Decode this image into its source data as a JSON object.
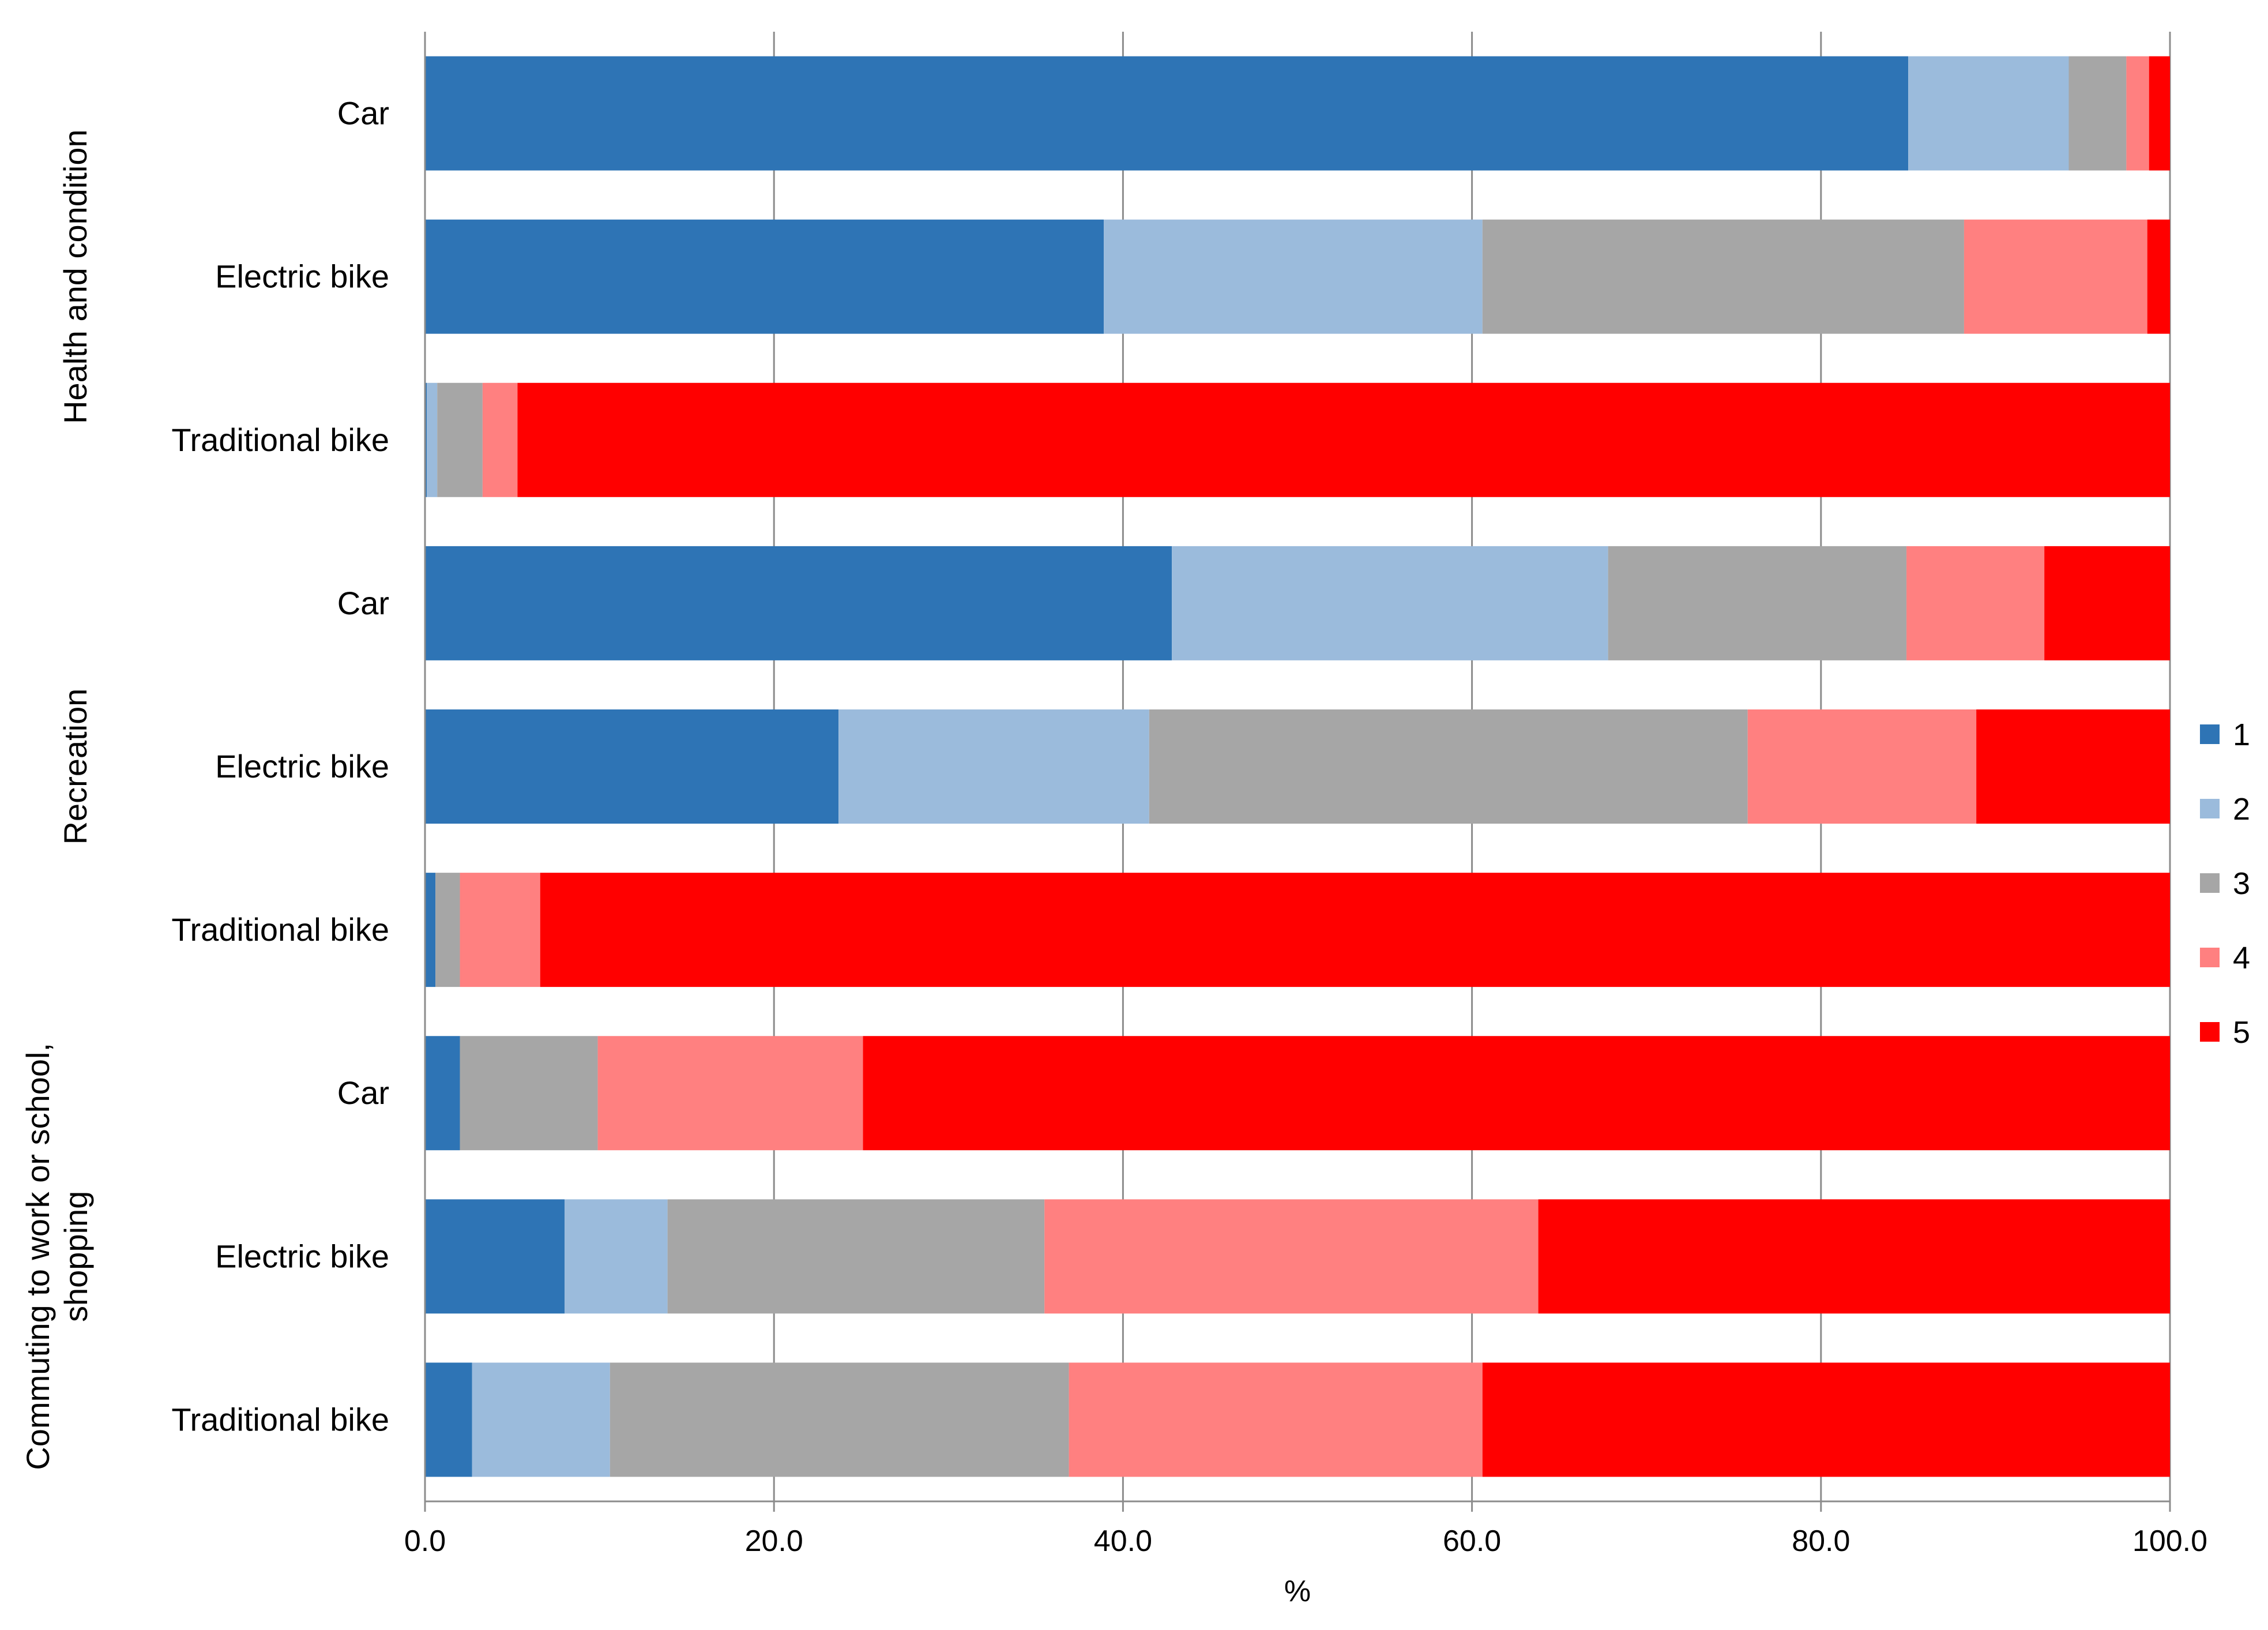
{
  "chart_data": {
    "type": "bar",
    "orientation": "horizontal",
    "stacked": true,
    "title": "",
    "xlabel": "%",
    "ylabel": "",
    "xlim": [
      0,
      100
    ],
    "grid": "vertical",
    "legend_position": "right",
    "x_ticks": [
      "0.0",
      "20.0",
      "40.0",
      "60.0",
      "80.0",
      "100.0"
    ],
    "colors": [
      "#2E74B5",
      "#9BBBDC",
      "#A6A6A6",
      "#FF8080",
      "#FF0000"
    ],
    "series": [
      {
        "name": "1",
        "values": [
          85.0,
          38.9,
          0.1,
          42.8,
          23.7,
          0.6,
          2.0,
          8.0,
          2.7
        ]
      },
      {
        "name": "2",
        "values": [
          9.2,
          21.7,
          0.6,
          25.0,
          17.8,
          0.0,
          0.0,
          5.9,
          7.9
        ]
      },
      {
        "name": "3",
        "values": [
          3.3,
          27.6,
          2.6,
          17.1,
          34.3,
          1.4,
          7.9,
          21.6,
          26.3
        ]
      },
      {
        "name": "4",
        "values": [
          1.3,
          10.5,
          2.0,
          7.9,
          13.1,
          4.6,
          15.2,
          28.3,
          23.7
        ]
      },
      {
        "name": "5",
        "values": [
          1.2,
          1.3,
          94.7,
          7.2,
          11.1,
          93.4,
          74.9,
          36.2,
          39.4
        ]
      }
    ],
    "groups": [
      {
        "label": [
          "Health and condition"
        ],
        "categories": [
          "Car",
          "Electric bike",
          "Traditional bike"
        ]
      },
      {
        "label": [
          "Recreation"
        ],
        "categories": [
          "Car",
          "Electric bike",
          "Traditional bike"
        ]
      },
      {
        "label": [
          "Commuting to work or school,",
          "shopping"
        ],
        "categories": [
          "Car",
          "Electric bike",
          "Traditional bike"
        ]
      }
    ]
  }
}
